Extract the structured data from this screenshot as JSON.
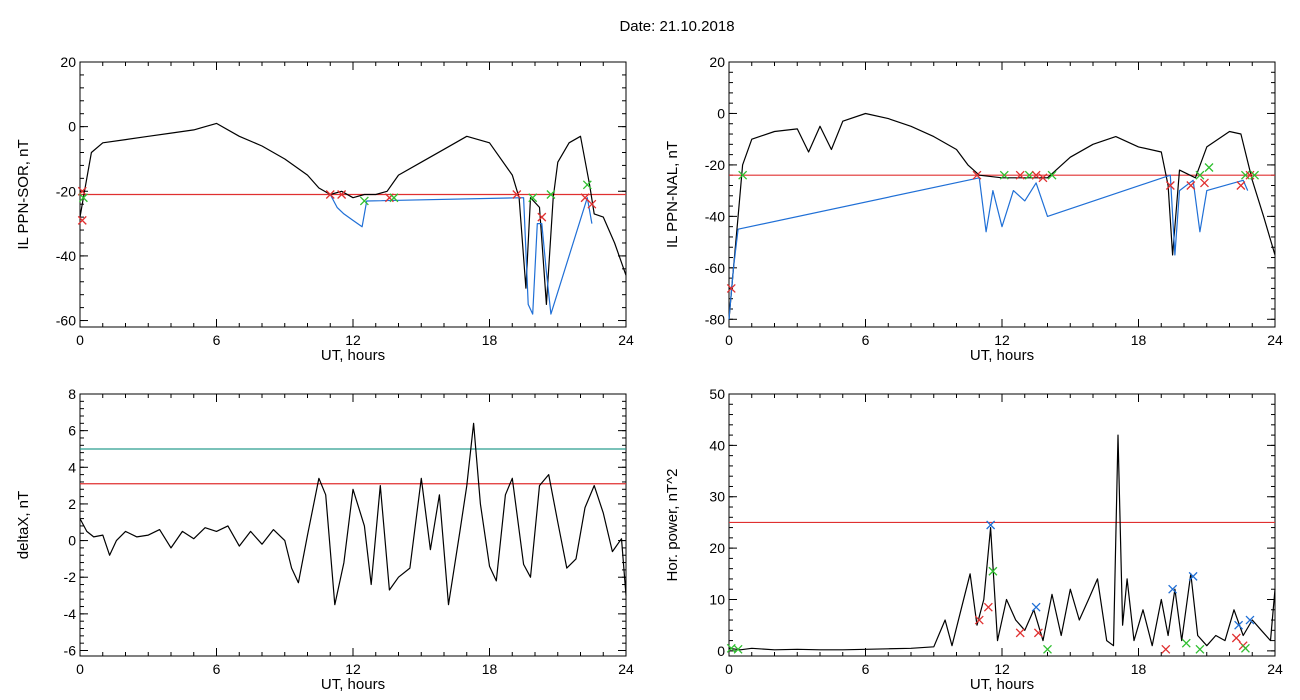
{
  "page_title": "Date:  21.10.2018",
  "chart_data": [
    {
      "type": "line",
      "panel": "top-left",
      "xlabel": "UT, hours",
      "ylabel": "IL PPN-SOR, nT",
      "xlim": [
        0,
        24
      ],
      "ylim": [
        -62,
        20
      ],
      "xticks": [
        0,
        6,
        12,
        18,
        24
      ],
      "yticks": [
        -60,
        -40,
        -20,
        0,
        20
      ],
      "threshold_lines": [
        {
          "y": -21,
          "color": "#e03030"
        }
      ],
      "series": [
        {
          "color": "#000000",
          "x": [
            0,
            0.2,
            0.5,
            1,
            2,
            3,
            4,
            5,
            6,
            7,
            8,
            9,
            10,
            10.5,
            11,
            11.5,
            12,
            12.5,
            13,
            13.5,
            14,
            15,
            16,
            17,
            18,
            19,
            19.3,
            19.6,
            19.8,
            20.2,
            20.5,
            20.8,
            21,
            21.5,
            22,
            22.4,
            22.6,
            23,
            23.5,
            24
          ],
          "y": [
            -28,
            -20,
            -8,
            -5,
            -4,
            -3,
            -2,
            -1,
            1,
            -3,
            -6,
            -10,
            -15,
            -19,
            -21,
            -20,
            -22,
            -21,
            -21,
            -20,
            -15,
            -11,
            -7,
            -3,
            -5,
            -15,
            -22,
            -50,
            -22,
            -25,
            -55,
            -22,
            -11,
            -5,
            -3,
            -18,
            -27,
            -28,
            -36,
            -46
          ]
        },
        {
          "name_hidden": true,
          "color": "#1f6fd6",
          "x": [
            11,
            11.3,
            11.6,
            12,
            12.4,
            12.6,
            19.5,
            19.7,
            19.9,
            20.1,
            20.3,
            20.5,
            20.7,
            22.3,
            22.5
          ],
          "y": [
            -21,
            -25,
            -27,
            -29,
            -31,
            -23,
            -22,
            -55,
            -58,
            -30,
            -30,
            -45,
            -58,
            -22,
            -30
          ]
        }
      ],
      "markers": [
        {
          "x": 0.1,
          "y": -20,
          "color": "#e03030"
        },
        {
          "x": 0.15,
          "y": -22,
          "color": "#2fbf2f"
        },
        {
          "x": 0.1,
          "y": -29,
          "color": "#e03030"
        },
        {
          "x": 11.0,
          "y": -21,
          "color": "#e03030"
        },
        {
          "x": 11.5,
          "y": -21,
          "color": "#e03030"
        },
        {
          "x": 12.5,
          "y": -23,
          "color": "#2fbf2f"
        },
        {
          "x": 13.6,
          "y": -22,
          "color": "#e03030"
        },
        {
          "x": 13.8,
          "y": -22,
          "color": "#2fbf2f"
        },
        {
          "x": 19.2,
          "y": -21,
          "color": "#e03030"
        },
        {
          "x": 19.9,
          "y": -22,
          "color": "#2fbf2f"
        },
        {
          "x": 20.3,
          "y": -28,
          "color": "#e03030"
        },
        {
          "x": 20.7,
          "y": -21,
          "color": "#2fbf2f"
        },
        {
          "x": 22.2,
          "y": -22,
          "color": "#e03030"
        },
        {
          "x": 22.3,
          "y": -18,
          "color": "#2fbf2f"
        },
        {
          "x": 22.5,
          "y": -24,
          "color": "#e03030"
        }
      ]
    },
    {
      "type": "line",
      "panel": "top-right",
      "xlabel": "UT, hours",
      "ylabel": "IL PPN-NAL, nT",
      "xlim": [
        0,
        24
      ],
      "ylim": [
        -83,
        20
      ],
      "xticks": [
        0,
        6,
        12,
        18,
        24
      ],
      "yticks": [
        -80,
        -60,
        -40,
        -20,
        0,
        20
      ],
      "threshold_lines": [
        {
          "y": -24,
          "color": "#e03030"
        }
      ],
      "series": [
        {
          "color": "#000000",
          "x": [
            0,
            0.2,
            0.4,
            0.6,
            1,
            2,
            3,
            3.5,
            4,
            4.5,
            5,
            6,
            7,
            8,
            9,
            10,
            10.5,
            11,
            12,
            13,
            14,
            15,
            16,
            17,
            18,
            19,
            19.3,
            19.5,
            19.8,
            20.5,
            21,
            22,
            22.5,
            23,
            23.5,
            24
          ],
          "y": [
            -80,
            -60,
            -40,
            -20,
            -10,
            -7,
            -6,
            -15,
            -5,
            -14,
            -3,
            0,
            -2,
            -5,
            -9,
            -14,
            -20,
            -24,
            -25,
            -25,
            -25,
            -17,
            -12,
            -9,
            -13,
            -15,
            -28,
            -55,
            -22,
            -25,
            -13,
            -7,
            -8,
            -26,
            -40,
            -55
          ]
        },
        {
          "color": "#1f6fd6",
          "x": [
            0,
            0.2,
            0.4,
            11,
            11.3,
            11.6,
            12,
            12.5,
            13,
            13.5,
            14,
            19.4,
            19.6,
            19.8,
            20.4,
            20.7,
            21,
            22.6,
            22.8
          ],
          "y": [
            -80,
            -60,
            -45,
            -25,
            -46,
            -30,
            -44,
            -30,
            -34,
            -27,
            -40,
            -24,
            -55,
            -30,
            -26,
            -46,
            -30,
            -26,
            -30
          ]
        }
      ],
      "markers": [
        {
          "x": 0.1,
          "y": -68,
          "color": "#e03030"
        },
        {
          "x": 0.6,
          "y": -24,
          "color": "#2fbf2f"
        },
        {
          "x": 10.9,
          "y": -24,
          "color": "#e03030"
        },
        {
          "x": 12.1,
          "y": -24,
          "color": "#2fbf2f"
        },
        {
          "x": 12.8,
          "y": -24,
          "color": "#e03030"
        },
        {
          "x": 13.2,
          "y": -24,
          "color": "#2fbf2f"
        },
        {
          "x": 13.5,
          "y": -24,
          "color": "#e03030"
        },
        {
          "x": 13.8,
          "y": -25,
          "color": "#e03030"
        },
        {
          "x": 14.2,
          "y": -24,
          "color": "#2fbf2f"
        },
        {
          "x": 19.4,
          "y": -28,
          "color": "#e03030"
        },
        {
          "x": 20.3,
          "y": -28,
          "color": "#e03030"
        },
        {
          "x": 20.7,
          "y": -24,
          "color": "#2fbf2f"
        },
        {
          "x": 20.9,
          "y": -27,
          "color": "#e03030"
        },
        {
          "x": 21.1,
          "y": -21,
          "color": "#2fbf2f"
        },
        {
          "x": 22.5,
          "y": -28,
          "color": "#e03030"
        },
        {
          "x": 22.7,
          "y": -24,
          "color": "#2fbf2f"
        },
        {
          "x": 22.9,
          "y": -24,
          "color": "#e03030"
        },
        {
          "x": 23.1,
          "y": -24,
          "color": "#2fbf2f"
        }
      ]
    },
    {
      "type": "line",
      "panel": "bottom-left",
      "xlabel": "UT, hours",
      "ylabel": "deltaX, nT",
      "xlim": [
        0,
        24
      ],
      "ylim": [
        -6.3,
        8
      ],
      "xticks": [
        0,
        6,
        12,
        18,
        24
      ],
      "yticks": [
        -6,
        -4,
        -2,
        0,
        2,
        4,
        6,
        8
      ],
      "threshold_lines": [
        {
          "y": 5,
          "color": "#2a9d8f"
        },
        {
          "y": 3.1,
          "color": "#e03030"
        }
      ],
      "series": [
        {
          "color": "#000000",
          "x": [
            0,
            0.3,
            0.6,
            1,
            1.3,
            1.6,
            2,
            2.5,
            3,
            3.5,
            4,
            4.5,
            5,
            5.5,
            6,
            6.5,
            7,
            7.5,
            8,
            8.5,
            9,
            9.3,
            9.6,
            10,
            10.5,
            10.8,
            11.2,
            11.6,
            12,
            12.5,
            12.8,
            13.2,
            13.6,
            14,
            14.5,
            15,
            15.4,
            15.8,
            16.2,
            16.7,
            17,
            17.3,
            17.6,
            18,
            18.3,
            18.7,
            19,
            19.5,
            19.8,
            20.2,
            20.6,
            21,
            21.4,
            21.8,
            22.2,
            22.6,
            23,
            23.4,
            23.8,
            24
          ],
          "y": [
            1.2,
            0.5,
            0.2,
            0.3,
            -0.8,
            0.0,
            0.5,
            0.2,
            0.3,
            0.6,
            -0.4,
            0.5,
            0.1,
            0.7,
            0.5,
            0.8,
            -0.3,
            0.5,
            -0.2,
            0.6,
            0.0,
            -1.5,
            -2.3,
            0.3,
            3.4,
            2.5,
            -3.5,
            -1.2,
            2.8,
            0.8,
            -2.4,
            3.0,
            -2.7,
            -2.0,
            -1.5,
            3.4,
            -0.5,
            2.5,
            -3.5,
            0.5,
            3.0,
            6.4,
            2.0,
            -1.4,
            -2.2,
            2.5,
            3.4,
            -1.3,
            -2.0,
            3.0,
            3.6,
            1.0,
            -1.5,
            -1.0,
            1.8,
            3.0,
            1.5,
            -0.6,
            0.1,
            -3.0
          ]
        }
      ],
      "markers": []
    },
    {
      "type": "line",
      "panel": "bottom-right",
      "xlabel": "UT, hours",
      "ylabel": "Hor. power, nT^2",
      "xlim": [
        0,
        24
      ],
      "ylim": [
        -1,
        50
      ],
      "xticks": [
        0,
        6,
        12,
        18,
        24
      ],
      "yticks": [
        0,
        10,
        20,
        30,
        40,
        50
      ],
      "threshold_lines": [
        {
          "y": 25,
          "color": "#e03030"
        }
      ],
      "series": [
        {
          "color": "#000000",
          "x": [
            0,
            0.5,
            1,
            2,
            3,
            4,
            5,
            6,
            7,
            8,
            9,
            9.5,
            9.8,
            10.2,
            10.6,
            10.9,
            11.2,
            11.5,
            11.8,
            12.2,
            12.6,
            13,
            13.4,
            13.8,
            14.2,
            14.6,
            15,
            15.4,
            15.8,
            16.2,
            16.6,
            16.9,
            17.1,
            17.3,
            17.5,
            17.8,
            18.2,
            18.6,
            19,
            19.3,
            19.6,
            19.9,
            20.3,
            20.6,
            21,
            21.4,
            21.8,
            22.2,
            22.6,
            23,
            23.4,
            23.8,
            24
          ],
          "y": [
            0.5,
            0.2,
            0.5,
            0.2,
            0.3,
            0.2,
            0.2,
            0.3,
            0.4,
            0.5,
            0.8,
            6,
            1,
            8,
            15,
            5,
            10,
            24,
            2,
            10,
            6,
            4,
            8,
            2,
            11,
            3,
            12,
            6,
            10,
            14,
            2,
            1,
            42,
            5,
            14,
            2,
            8,
            1,
            10,
            3,
            12,
            2,
            15,
            3,
            1,
            3,
            2,
            8,
            3,
            6,
            4,
            2,
            12
          ]
        }
      ],
      "markers": [
        {
          "x": 0.1,
          "y": 0.5,
          "color": "#2fbf2f"
        },
        {
          "x": 0.4,
          "y": 0.3,
          "color": "#2fbf2f"
        },
        {
          "x": 11.0,
          "y": 6,
          "color": "#e03030"
        },
        {
          "x": 11.4,
          "y": 8.5,
          "color": "#e03030"
        },
        {
          "x": 11.5,
          "y": 24.5,
          "color": "#1f6fd6"
        },
        {
          "x": 11.6,
          "y": 15.5,
          "color": "#2fbf2f"
        },
        {
          "x": 12.8,
          "y": 3.5,
          "color": "#e03030"
        },
        {
          "x": 13.5,
          "y": 8.5,
          "color": "#1f6fd6"
        },
        {
          "x": 13.6,
          "y": 3.5,
          "color": "#e03030"
        },
        {
          "x": 14.0,
          "y": 0.3,
          "color": "#2fbf2f"
        },
        {
          "x": 19.2,
          "y": 0.3,
          "color": "#e03030"
        },
        {
          "x": 19.5,
          "y": 12,
          "color": "#1f6fd6"
        },
        {
          "x": 20.1,
          "y": 1.5,
          "color": "#2fbf2f"
        },
        {
          "x": 20.4,
          "y": 14.5,
          "color": "#1f6fd6"
        },
        {
          "x": 20.7,
          "y": 0.3,
          "color": "#2fbf2f"
        },
        {
          "x": 22.3,
          "y": 2.5,
          "color": "#e03030"
        },
        {
          "x": 22.4,
          "y": 5,
          "color": "#1f6fd6"
        },
        {
          "x": 22.6,
          "y": 1,
          "color": "#e03030"
        },
        {
          "x": 22.7,
          "y": 0.5,
          "color": "#2fbf2f"
        },
        {
          "x": 22.9,
          "y": 6,
          "color": "#1f6fd6"
        }
      ]
    }
  ]
}
